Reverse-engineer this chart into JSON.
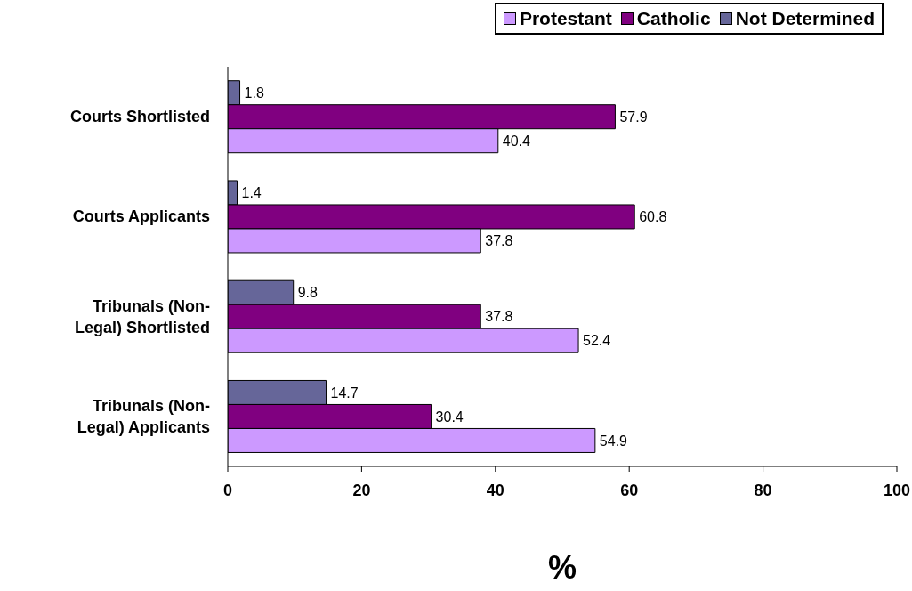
{
  "chart_data": {
    "type": "bar",
    "orientation": "horizontal",
    "xlabel": "%",
    "categories": [
      "Courts Shortlisted",
      "Courts Applicants",
      "Tribunals (Non-Legal) Shortlisted",
      "Tribunals (Non-Legal) Applicants"
    ],
    "series": [
      {
        "name": "Protestant",
        "color": "#cc99ff",
        "values": [
          40.4,
          37.8,
          52.4,
          54.9
        ]
      },
      {
        "name": "Catholic",
        "color": "#800080",
        "values": [
          57.9,
          60.8,
          37.8,
          30.4
        ]
      },
      {
        "name": "Not Determined",
        "color": "#666699",
        "values": [
          1.8,
          1.4,
          9.8,
          14.7
        ]
      }
    ],
    "xlim": [
      0,
      100
    ],
    "xticks": [
      0,
      20,
      40,
      60,
      80,
      100
    ],
    "grid": false,
    "legend": "top right",
    "data_labels": true
  }
}
